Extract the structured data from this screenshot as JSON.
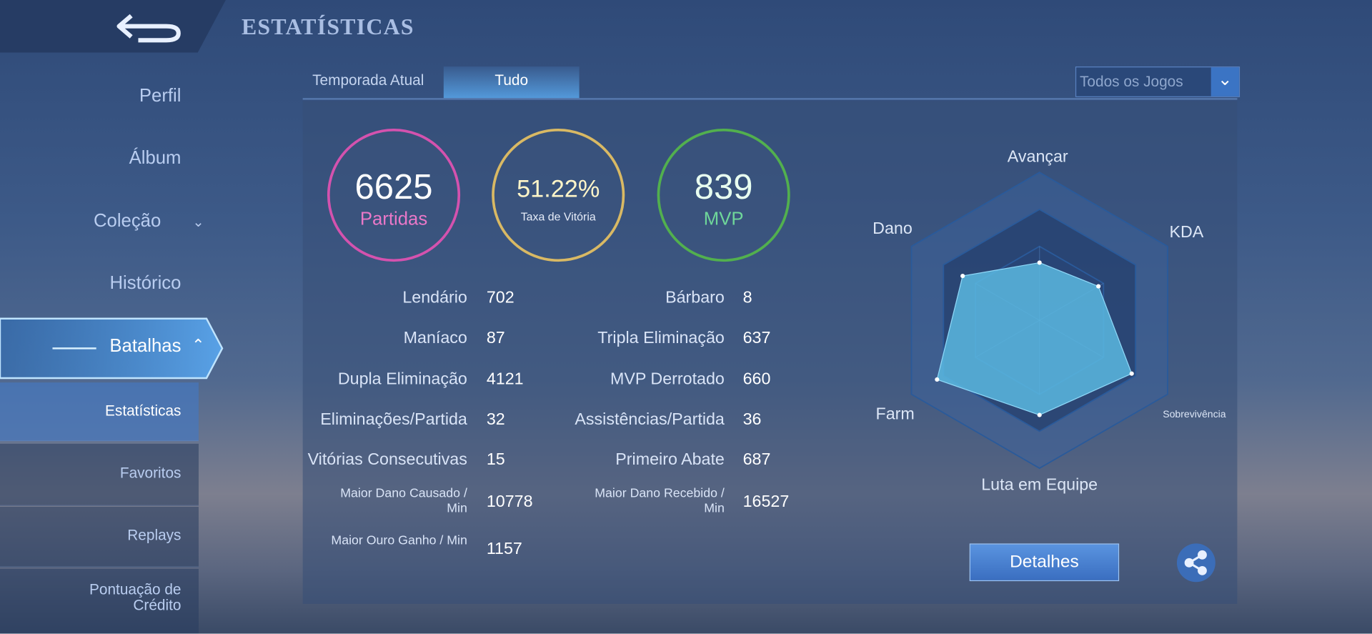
{
  "header": {
    "title": "ESTATÍSTICAS"
  },
  "nav": [
    "Perfil",
    "Álbum",
    "Coleção",
    "Histórico",
    "Batalhas"
  ],
  "subnav": [
    "Estatísticas",
    "Favoritos",
    "Replays",
    "Pontuação de Crédito"
  ],
  "tabs": [
    "Temporada Atual",
    "Tudo"
  ],
  "filter": "Todos os Jogos",
  "summary": [
    {
      "value": 6625,
      "label": "Partidas"
    },
    {
      "value": "51.22%",
      "label": "Taxa de Vitória"
    },
    {
      "value": 839,
      "label": "MVP"
    }
  ],
  "stats_left": [
    {
      "label": "Lendário",
      "value": 702
    },
    {
      "label": "Maníaco",
      "value": 87
    },
    {
      "label": "Dupla Eliminação",
      "value": 4121
    },
    {
      "label": "Eliminações/Partida",
      "value": 32
    },
    {
      "label": "Vitórias Consecutivas",
      "value": 15
    },
    {
      "label": "Maior Dano Causado / Min",
      "value": 10778
    },
    {
      "label": "Maior Ouro Ganho / Min",
      "value": 1157
    }
  ],
  "stats_right": [
    {
      "label": "Bárbaro",
      "value": 8
    },
    {
      "label": "Tripla Eliminação",
      "value": 637
    },
    {
      "label": "MVP Derrotado",
      "value": 660
    },
    {
      "label": "Assistências/Partida",
      "value": 36
    },
    {
      "label": "Primeiro Abate",
      "value": 687
    },
    {
      "label": "Maior Dano Recebido / Min",
      "value": 16527
    }
  ],
  "radar": {
    "type": "radar",
    "axes": [
      "Avançar",
      "KDA",
      "Sobrevivência",
      "Luta em Equipe",
      "Farm",
      "Dano"
    ],
    "values": [
      39,
      46,
      72,
      64,
      80,
      60
    ],
    "rlim": [
      0,
      100
    ],
    "rgrid": [
      50,
      75,
      100
    ],
    "color": "#5bb8e0"
  },
  "buttons": {
    "details": "Detalhes"
  }
}
